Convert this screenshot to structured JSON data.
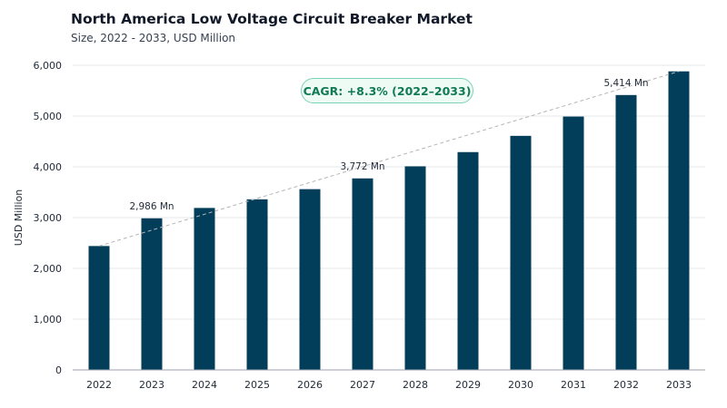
{
  "chart_data": {
    "type": "bar",
    "title": "North America Low Voltage Circuit Breaker Market",
    "subtitle": "Size, 2022 - 2033, USD Million",
    "xlabel": "",
    "ylabel": "USD Million",
    "ylim": [
      0,
      6000
    ],
    "yticks": [
      0,
      1000,
      2000,
      3000,
      4000,
      5000,
      6000
    ],
    "ytick_labels": [
      "0",
      "1,000",
      "2,000",
      "3,000",
      "4,000",
      "5,000",
      "6,000"
    ],
    "categories": [
      "2022",
      "2023",
      "2024",
      "2025",
      "2026",
      "2027",
      "2028",
      "2029",
      "2030",
      "2031",
      "2032",
      "2033"
    ],
    "values": [
      2440,
      2986,
      3190,
      3360,
      3560,
      3772,
      4010,
      4290,
      4610,
      4990,
      5414,
      5880
    ],
    "data_labels": [
      {
        "category": "2023",
        "text": "2,986 Mn"
      },
      {
        "category": "2027",
        "text": "3,772 Mn"
      },
      {
        "category": "2032",
        "text": "5,414 Mn"
      }
    ],
    "annotation": "CAGR: +8.3% (2022–2033)",
    "grid": true,
    "bar_color": "#023e5a",
    "trend_color": "#b5b5b5"
  }
}
